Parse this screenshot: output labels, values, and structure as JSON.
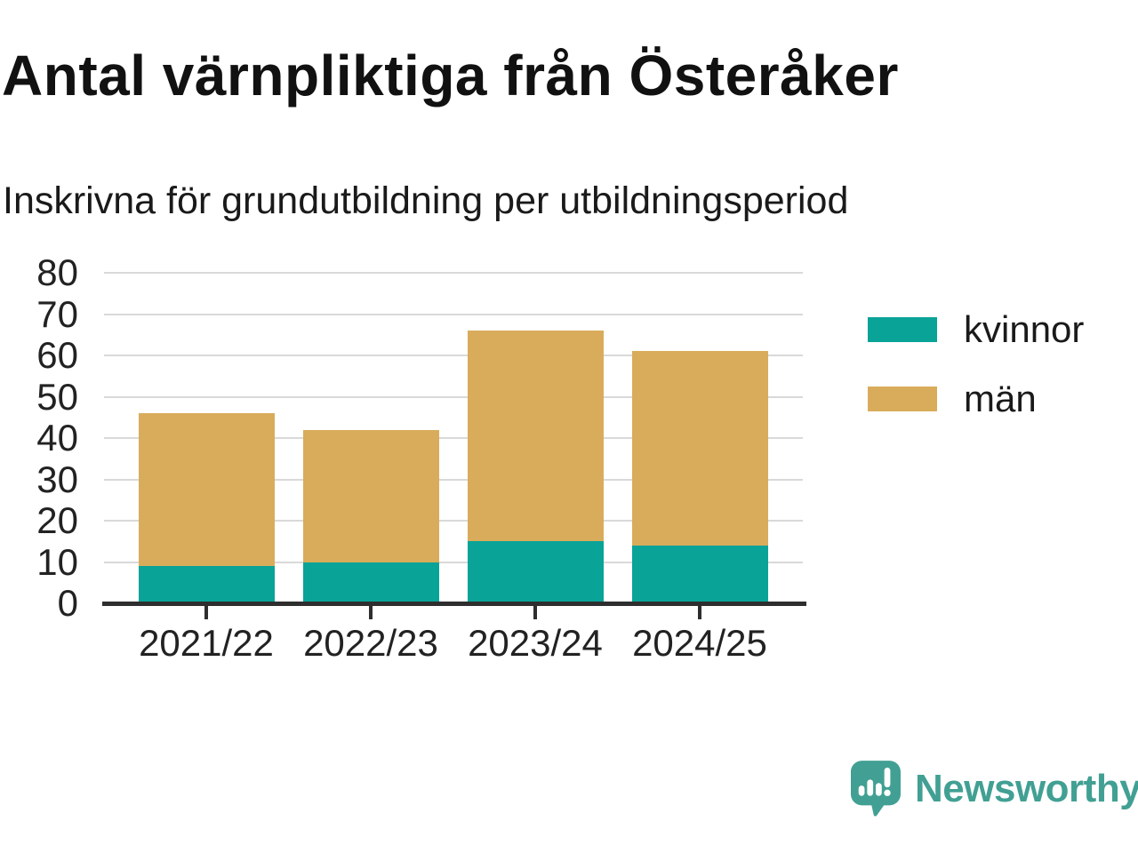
{
  "title": "Antal värnpliktiga från Österåker",
  "subtitle": "Inskrivna för grundutbildning per utbildningsperiod",
  "chart_data": {
    "type": "bar",
    "stacked": true,
    "categories": [
      "2021/22",
      "2022/23",
      "2023/24",
      "2024/25"
    ],
    "series": [
      {
        "name": "kvinnor",
        "color": "#09a398",
        "values": [
          9,
          10,
          15,
          14
        ]
      },
      {
        "name": "män",
        "color": "#d9ac5b",
        "values": [
          37,
          32,
          51,
          47
        ]
      }
    ],
    "stack_totals": [
      46,
      42,
      66,
      61
    ],
    "title": "Antal värnpliktiga från Österåker",
    "subtitle": "Inskrivna för grundutbildning per utbildningsperiod",
    "xlabel": "",
    "ylabel": "",
    "ylim": [
      0,
      80
    ],
    "yticks": [
      0,
      10,
      20,
      30,
      40,
      50,
      60,
      70,
      80
    ],
    "grid": "horizontal",
    "legend_position": "right",
    "legend_entries": [
      "kvinnor",
      "män"
    ]
  },
  "colors": {
    "grid": "#d9d9d9",
    "axis": "#2e2e2e",
    "kvinnor": "#09a398",
    "man": "#d9ac5b",
    "brand_teal": "#41a093"
  },
  "branding": {
    "logo_text": "Newsworthy",
    "logo_icon": "bar-chart-speech-bubble-icon"
  }
}
